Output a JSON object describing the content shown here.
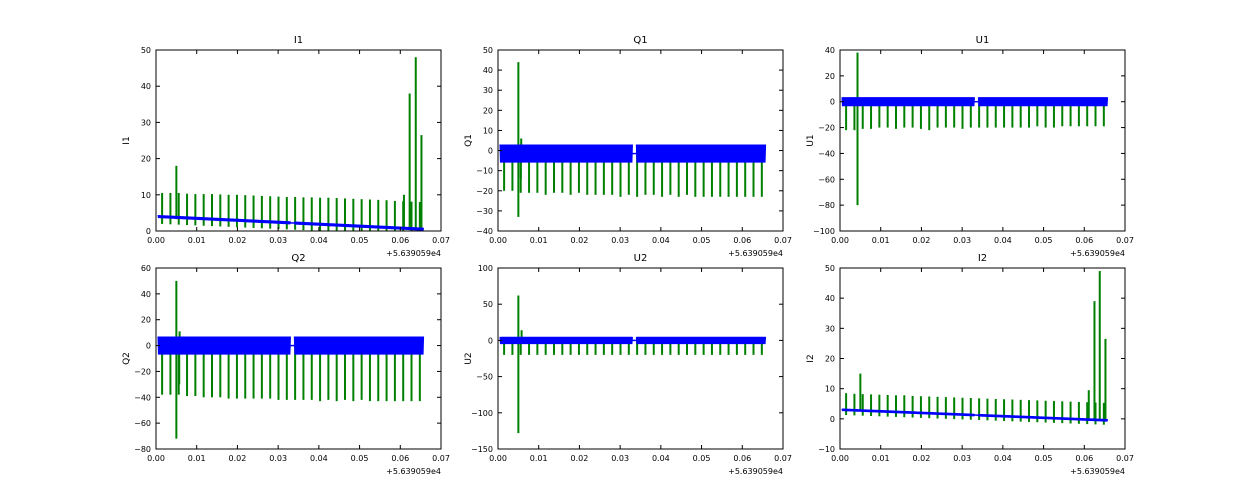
{
  "chart_data": [
    {
      "type": "line",
      "title": "I1",
      "xlabel": "",
      "ylabel": "I1",
      "x_offset_label": "+5.639059e4",
      "xlim": [
        0.0,
        0.07
      ],
      "ylim": [
        0,
        50
      ],
      "xticks": [
        "0.00",
        "0.01",
        "0.02",
        "0.03",
        "0.04",
        "0.05",
        "0.06",
        "0.07"
      ],
      "yticks": [
        "0",
        "10",
        "20",
        "30",
        "40",
        "50"
      ],
      "series": [
        {
          "name": "blue",
          "color": "#0000ff",
          "style": "band",
          "start": 4,
          "end": 0.5,
          "band": 0.8,
          "gap": [
            0.033,
            0.034
          ]
        },
        {
          "name": "green",
          "color": "#008000",
          "style": "spikes",
          "base_start": 3.5,
          "base_end": 0.3,
          "spikes_high": [
            10.5,
            10.5,
            10.5,
            10.3,
            10.2,
            10.2,
            10.2,
            10.1,
            10.0,
            10.0,
            9.9,
            9.8,
            9.7,
            9.6,
            9.5,
            9.4,
            9.4,
            9.3,
            9.3,
            9.2,
            9.2,
            9.1,
            9.0,
            8.9,
            8.8,
            8.7,
            8.6,
            8.5,
            8.3,
            8.2,
            8.1,
            8.0
          ],
          "spikes_low": [],
          "events": [
            {
              "x": 0.005,
              "y": 18
            },
            {
              "x": 0.0623,
              "y": 38
            },
            {
              "x": 0.0638,
              "y": 48
            },
            {
              "x": 0.0652,
              "y": 26.5
            },
            {
              "x": 0.0609,
              "y": 10
            }
          ]
        }
      ]
    },
    {
      "type": "line",
      "title": "Q1",
      "xlabel": "",
      "ylabel": "Q1",
      "x_offset_label": "+5.639059e4",
      "xlim": [
        0.0,
        0.07
      ],
      "ylim": [
        -40,
        50
      ],
      "xticks": [
        "0.00",
        "0.01",
        "0.02",
        "0.03",
        "0.04",
        "0.05",
        "0.06",
        "0.07"
      ],
      "yticks": [
        "−40",
        "−30",
        "−20",
        "−10",
        "0",
        "10",
        "20",
        "30",
        "40",
        "50"
      ],
      "series": [
        {
          "name": "blue",
          "color": "#0000ff",
          "style": "band",
          "start": -1.5,
          "end": -1.5,
          "band": 9,
          "gap": [
            0.033,
            0.034
          ]
        },
        {
          "name": "green",
          "color": "#008000",
          "style": "spikes",
          "base_start": -1.5,
          "base_end": -1.5,
          "spikes_high": [],
          "spikes_low": [
            -20,
            -20,
            -21,
            -21,
            -21,
            -22,
            -21,
            -21,
            -22,
            -21,
            -22,
            -22,
            -22,
            -22,
            -23,
            -22,
            -23,
            -22,
            -22,
            -23,
            -22,
            -23,
            -22,
            -23,
            -23,
            -23,
            -23,
            -23,
            -23,
            -23,
            -23,
            -23
          ],
          "events": [
            {
              "x": 0.005,
              "y": 44
            },
            {
              "x": 0.005,
              "y": -33
            },
            {
              "x": 0.0057,
              "y": 6
            },
            {
              "x": 0.0056,
              "y": -14
            }
          ]
        }
      ]
    },
    {
      "type": "line",
      "title": "U1",
      "xlabel": "",
      "ylabel": "U1",
      "x_offset_label": "+5.639059e4",
      "xlim": [
        0.0,
        0.07
      ],
      "ylim": [
        -100,
        40
      ],
      "xticks": [
        "0.00",
        "0.01",
        "0.02",
        "0.03",
        "0.04",
        "0.05",
        "0.06",
        "0.07"
      ],
      "yticks": [
        "−100",
        "−80",
        "−60",
        "−40",
        "−20",
        "0",
        "20",
        "40"
      ],
      "series": [
        {
          "name": "blue",
          "color": "#0000ff",
          "style": "band",
          "start": 0,
          "end": 0,
          "band": 7,
          "gap": [
            0.033,
            0.034
          ]
        },
        {
          "name": "green",
          "color": "#008000",
          "style": "spikes",
          "base_start": 0,
          "base_end": 0,
          "spikes_high": [],
          "spikes_low": [
            -22,
            -22,
            -21,
            -21,
            -20,
            -20,
            -21,
            -20,
            -20,
            -21,
            -22,
            -20,
            -20,
            -20,
            -21,
            -20,
            -20,
            -20,
            -20,
            -20,
            -20,
            -20,
            -20,
            -19,
            -20,
            -20,
            -19,
            -19,
            -19,
            -19,
            -19,
            -19
          ],
          "events": [
            {
              "x": 0.0043,
              "y": 38
            },
            {
              "x": 0.0043,
              "y": -80
            }
          ]
        }
      ]
    },
    {
      "type": "line",
      "title": "Q2",
      "xlabel": "",
      "ylabel": "Q2",
      "x_offset_label": "+5.639059e4",
      "xlim": [
        0.0,
        0.07
      ],
      "ylim": [
        -80,
        60
      ],
      "xticks": [
        "0.00",
        "0.01",
        "0.02",
        "0.03",
        "0.04",
        "0.05",
        "0.06",
        "0.07"
      ],
      "yticks": [
        "−80",
        "−60",
        "−40",
        "−20",
        "0",
        "20",
        "40",
        "60"
      ],
      "series": [
        {
          "name": "blue",
          "color": "#0000ff",
          "style": "band",
          "start": 0,
          "end": 0,
          "band": 14,
          "gap": [
            0.033,
            0.034
          ]
        },
        {
          "name": "green",
          "color": "#008000",
          "style": "spikes",
          "base_start": 0,
          "base_end": 0,
          "spikes_high": [],
          "spikes_low": [
            -38,
            -38,
            -38,
            -39,
            -39,
            -40,
            -40,
            -40,
            -41,
            -41,
            -41,
            -41,
            -41,
            -41,
            -42,
            -42,
            -42,
            -42,
            -42,
            -43,
            -42,
            -43,
            -42,
            -43,
            -42,
            -43,
            -43,
            -43,
            -43,
            -43,
            -43,
            -43
          ],
          "events": [
            {
              "x": 0.005,
              "y": 50
            },
            {
              "x": 0.005,
              "y": -72
            },
            {
              "x": 0.0058,
              "y": 11
            },
            {
              "x": 0.0057,
              "y": -30
            }
          ]
        }
      ]
    },
    {
      "type": "line",
      "title": "U2",
      "xlabel": "",
      "ylabel": "U2",
      "x_offset_label": "+5.639059e4",
      "xlim": [
        0.0,
        0.07
      ],
      "ylim": [
        -150,
        100
      ],
      "xticks": [
        "0.00",
        "0.01",
        "0.02",
        "0.03",
        "0.04",
        "0.05",
        "0.06",
        "0.07"
      ],
      "yticks": [
        "−150",
        "−100",
        "−50",
        "0",
        "50",
        "100"
      ],
      "series": [
        {
          "name": "blue",
          "color": "#0000ff",
          "style": "band",
          "start": 0,
          "end": 0,
          "band": 10,
          "gap": [
            0.033,
            0.034
          ]
        },
        {
          "name": "green",
          "color": "#008000",
          "style": "spikes",
          "base_start": 0,
          "base_end": 0,
          "spikes_high": [],
          "spikes_low": [
            -20,
            -20,
            -20,
            -20,
            -20,
            -20,
            -20,
            -20,
            -20,
            -20,
            -20,
            -20,
            -20,
            -20,
            -20,
            -20,
            -20,
            -20,
            -20,
            -20,
            -20,
            -20,
            -20,
            -20,
            -20,
            -20,
            -20,
            -20,
            -20,
            -20,
            -20,
            -20
          ],
          "events": [
            {
              "x": 0.005,
              "y": 62
            },
            {
              "x": 0.005,
              "y": -128
            },
            {
              "x": 0.0058,
              "y": 14
            }
          ]
        }
      ]
    },
    {
      "type": "line",
      "title": "I2",
      "xlabel": "",
      "ylabel": "I2",
      "x_offset_label": "+5.639059e4",
      "xlim": [
        0.0,
        0.07
      ],
      "ylim": [
        -10,
        50
      ],
      "xticks": [
        "0.00",
        "0.01",
        "0.02",
        "0.03",
        "0.04",
        "0.05",
        "0.06",
        "0.07"
      ],
      "yticks": [
        "−10",
        "0",
        "10",
        "20",
        "30",
        "40",
        "50"
      ],
      "series": [
        {
          "name": "blue",
          "color": "#0000ff",
          "style": "band",
          "start": 3,
          "end": -0.5,
          "band": 0.8,
          "gap": [
            0.033,
            0.034
          ]
        },
        {
          "name": "green",
          "color": "#008000",
          "style": "spikes",
          "base_start": 2.8,
          "base_end": -0.5,
          "spikes_high": [
            8.5,
            8.3,
            8.2,
            8.1,
            8.0,
            7.9,
            7.8,
            7.8,
            7.6,
            7.5,
            7.4,
            7.3,
            7.2,
            7.1,
            7.0,
            6.9,
            6.8,
            6.7,
            6.6,
            6.5,
            6.4,
            6.3,
            6.2,
            6.1,
            6.0,
            5.9,
            5.8,
            5.7,
            5.6,
            5.5,
            5.4,
            5.3
          ],
          "spikes_low": [],
          "events": [
            {
              "x": 0.005,
              "y": 15
            },
            {
              "x": 0.0625,
              "y": 39
            },
            {
              "x": 0.0638,
              "y": 49
            },
            {
              "x": 0.0652,
              "y": 26.5
            },
            {
              "x": 0.0611,
              "y": 9.5
            }
          ]
        }
      ]
    }
  ]
}
